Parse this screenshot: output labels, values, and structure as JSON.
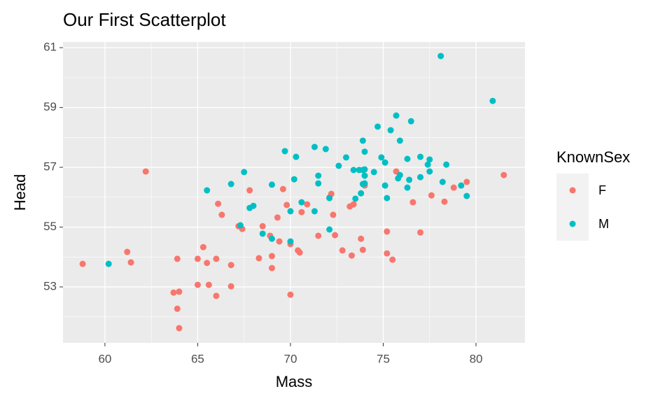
{
  "chart_data": {
    "type": "scatter",
    "title": "Our First Scatterplot",
    "x_label": "Mass",
    "y_label": "Head",
    "legend_title": "KnownSex",
    "legend_position": "right",
    "grid": true,
    "xlim": [
      57.74,
      82.64
    ],
    "ylim": [
      51.13,
      61.19
    ],
    "xticks": [
      60,
      65,
      70,
      75,
      80
    ],
    "yticks": [
      53,
      55,
      57,
      59,
      61
    ],
    "xminor": [
      62.5,
      67.5,
      72.5,
      77.5
    ],
    "yminor": [
      52,
      54,
      56,
      58,
      60
    ],
    "series": [
      {
        "name": "F",
        "color": "#F8766D",
        "x": [
          58.8,
          61.2,
          61.4,
          62.2,
          63.7,
          63.9,
          64.0,
          63.9,
          64.0,
          65.0,
          65.3,
          65.5,
          65.0,
          65.6,
          66.0,
          66.0,
          66.1,
          66.3,
          66.8,
          66.8,
          67.2,
          67.4,
          67.8,
          68.3,
          68.5,
          68.9,
          69.0,
          69.0,
          69.4,
          69.3,
          69.6,
          69.8,
          70.0,
          70.0,
          70.4,
          70.5,
          70.6,
          70.9,
          71.5,
          72.1,
          72.2,
          72.3,
          72.4,
          72.8,
          73.3,
          73.2,
          73.4,
          73.8,
          73.9,
          74.0,
          75.2,
          75.2,
          75.5,
          75.7,
          76.6,
          77.0,
          77.6,
          78.3,
          78.8,
          79.5,
          81.5
        ],
        "y": [
          53.77,
          54.17,
          53.82,
          56.86,
          52.81,
          53.94,
          52.84,
          52.27,
          51.62,
          53.94,
          54.33,
          53.8,
          53.07,
          53.07,
          53.94,
          52.7,
          55.78,
          55.41,
          53.73,
          53.02,
          55.03,
          54.94,
          56.23,
          53.96,
          55.03,
          54.71,
          54.03,
          53.63,
          54.52,
          55.32,
          56.27,
          55.74,
          54.43,
          52.74,
          54.22,
          54.15,
          55.5,
          55.76,
          54.71,
          55.99,
          56.11,
          55.41,
          54.73,
          54.22,
          54.05,
          55.69,
          55.76,
          54.61,
          54.24,
          56.39,
          54.85,
          54.12,
          53.91,
          56.86,
          55.83,
          54.82,
          56.06,
          55.85,
          56.32,
          56.51,
          56.74
        ]
      },
      {
        "name": "M",
        "color": "#00BFC4",
        "x": [
          60.2,
          65.5,
          66.8,
          67.5,
          67.3,
          67.8,
          68.0,
          68.5,
          69.0,
          69.0,
          69.7,
          70.0,
          70.0,
          70.2,
          70.3,
          70.6,
          71.3,
          71.3,
          71.5,
          71.5,
          71.9,
          72.1,
          72.1,
          72.6,
          73.0,
          73.4,
          73.5,
          73.7,
          73.8,
          73.9,
          73.9,
          73.9,
          74.0,
          74.0,
          74.0,
          74.0,
          74.5,
          74.7,
          74.9,
          75.1,
          75.1,
          75.2,
          75.4,
          75.7,
          75.8,
          75.9,
          75.9,
          76.3,
          76.3,
          76.4,
          76.5,
          77.0,
          77.0,
          77.4,
          77.5,
          77.5,
          78.1,
          78.2,
          78.4,
          79.2,
          79.5,
          80.9
        ],
        "y": [
          53.77,
          56.23,
          56.44,
          56.84,
          55.06,
          55.64,
          55.71,
          54.78,
          56.42,
          54.61,
          57.54,
          55.53,
          54.52,
          56.6,
          57.35,
          55.83,
          55.53,
          57.68,
          56.72,
          56.46,
          57.61,
          55.97,
          54.92,
          57.05,
          57.33,
          56.91,
          55.95,
          56.91,
          56.13,
          57.89,
          56.91,
          56.44,
          57.52,
          56.93,
          56.72,
          56.46,
          56.84,
          58.36,
          57.33,
          57.16,
          56.39,
          55.97,
          58.24,
          58.73,
          56.63,
          56.74,
          57.89,
          56.32,
          57.28,
          56.58,
          58.54,
          57.35,
          56.67,
          57.09,
          56.86,
          57.26,
          60.72,
          56.51,
          57.09,
          56.39,
          56.04,
          59.22
        ]
      }
    ]
  }
}
